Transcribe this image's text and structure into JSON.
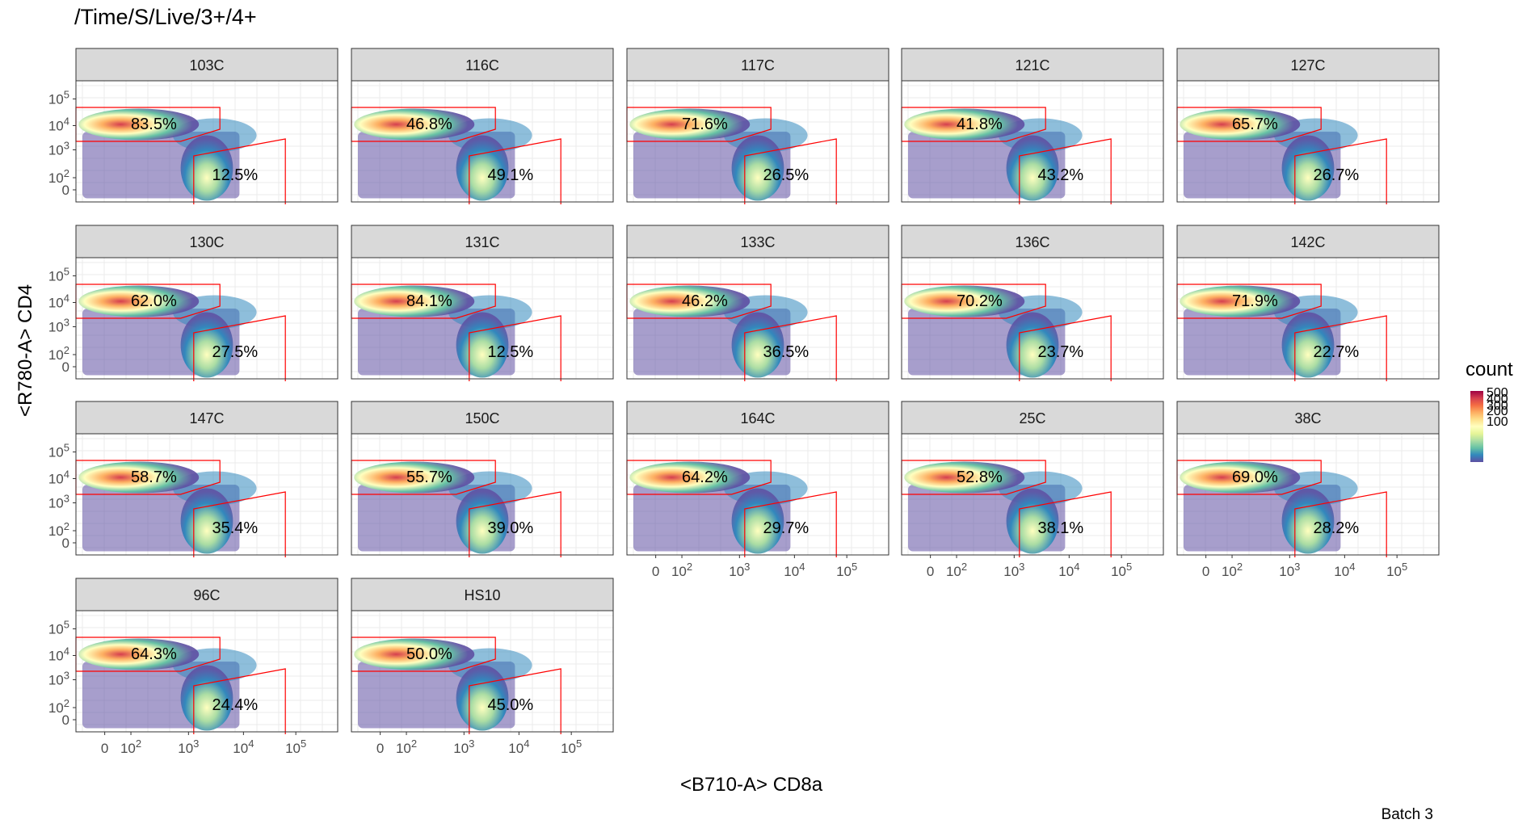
{
  "chart_data": {
    "type": "heatmap",
    "subtype": "faceted flow cytometry density plot with gates",
    "title": "/Time/S/Live/3+/4+",
    "xlabel": "<B710-A> CD8a",
    "ylabel": "<R780-A> CD4",
    "caption": "Batch 3",
    "x_scale": "logicle",
    "y_scale": "logicle",
    "x_ticks": [
      "0",
      "10^2",
      "10^3",
      "10^4",
      "10^5"
    ],
    "y_ticks": [
      "0",
      "10^2",
      "10^3",
      "10^4",
      "10^5"
    ],
    "grid": true,
    "legend": {
      "title": "count",
      "placement": "right",
      "labels": [
        "500",
        "400",
        "300",
        "200",
        "100"
      ],
      "colors": [
        "#9e0142",
        "#d53e4f",
        "#f46d43",
        "#fdae61",
        "#fee08b",
        "#ffffbf",
        "#e6f598",
        "#abdda4",
        "#66c2a5",
        "#3288bd",
        "#5e4fa2"
      ]
    },
    "gate_color": "#ff0000",
    "panels": [
      {
        "name": "103C",
        "cd4_pct": "83.5%",
        "cd8_pct": "12.5%"
      },
      {
        "name": "116C",
        "cd4_pct": "46.8%",
        "cd8_pct": "49.1%"
      },
      {
        "name": "117C",
        "cd4_pct": "71.6%",
        "cd8_pct": "26.5%"
      },
      {
        "name": "121C",
        "cd4_pct": "41.8%",
        "cd8_pct": "43.2%"
      },
      {
        "name": "127C",
        "cd4_pct": "65.7%",
        "cd8_pct": "26.7%"
      },
      {
        "name": "130C",
        "cd4_pct": "62.0%",
        "cd8_pct": "27.5%"
      },
      {
        "name": "131C",
        "cd4_pct": "84.1%",
        "cd8_pct": "12.5%"
      },
      {
        "name": "133C",
        "cd4_pct": "46.2%",
        "cd8_pct": "36.5%"
      },
      {
        "name": "136C",
        "cd4_pct": "70.2%",
        "cd8_pct": "23.7%"
      },
      {
        "name": "142C",
        "cd4_pct": "71.9%",
        "cd8_pct": "22.7%"
      },
      {
        "name": "147C",
        "cd4_pct": "58.7%",
        "cd8_pct": "35.4%"
      },
      {
        "name": "150C",
        "cd4_pct": "55.7%",
        "cd8_pct": "39.0%"
      },
      {
        "name": "164C",
        "cd4_pct": "64.2%",
        "cd8_pct": "29.7%"
      },
      {
        "name": "25C",
        "cd4_pct": "52.8%",
        "cd8_pct": "38.1%"
      },
      {
        "name": "38C",
        "cd4_pct": "69.0%",
        "cd8_pct": "28.2%"
      },
      {
        "name": "96C",
        "cd4_pct": "64.3%",
        "cd8_pct": "24.4%"
      },
      {
        "name": "HS10",
        "cd4_pct": "50.0%",
        "cd8_pct": "45.0%"
      }
    ]
  }
}
